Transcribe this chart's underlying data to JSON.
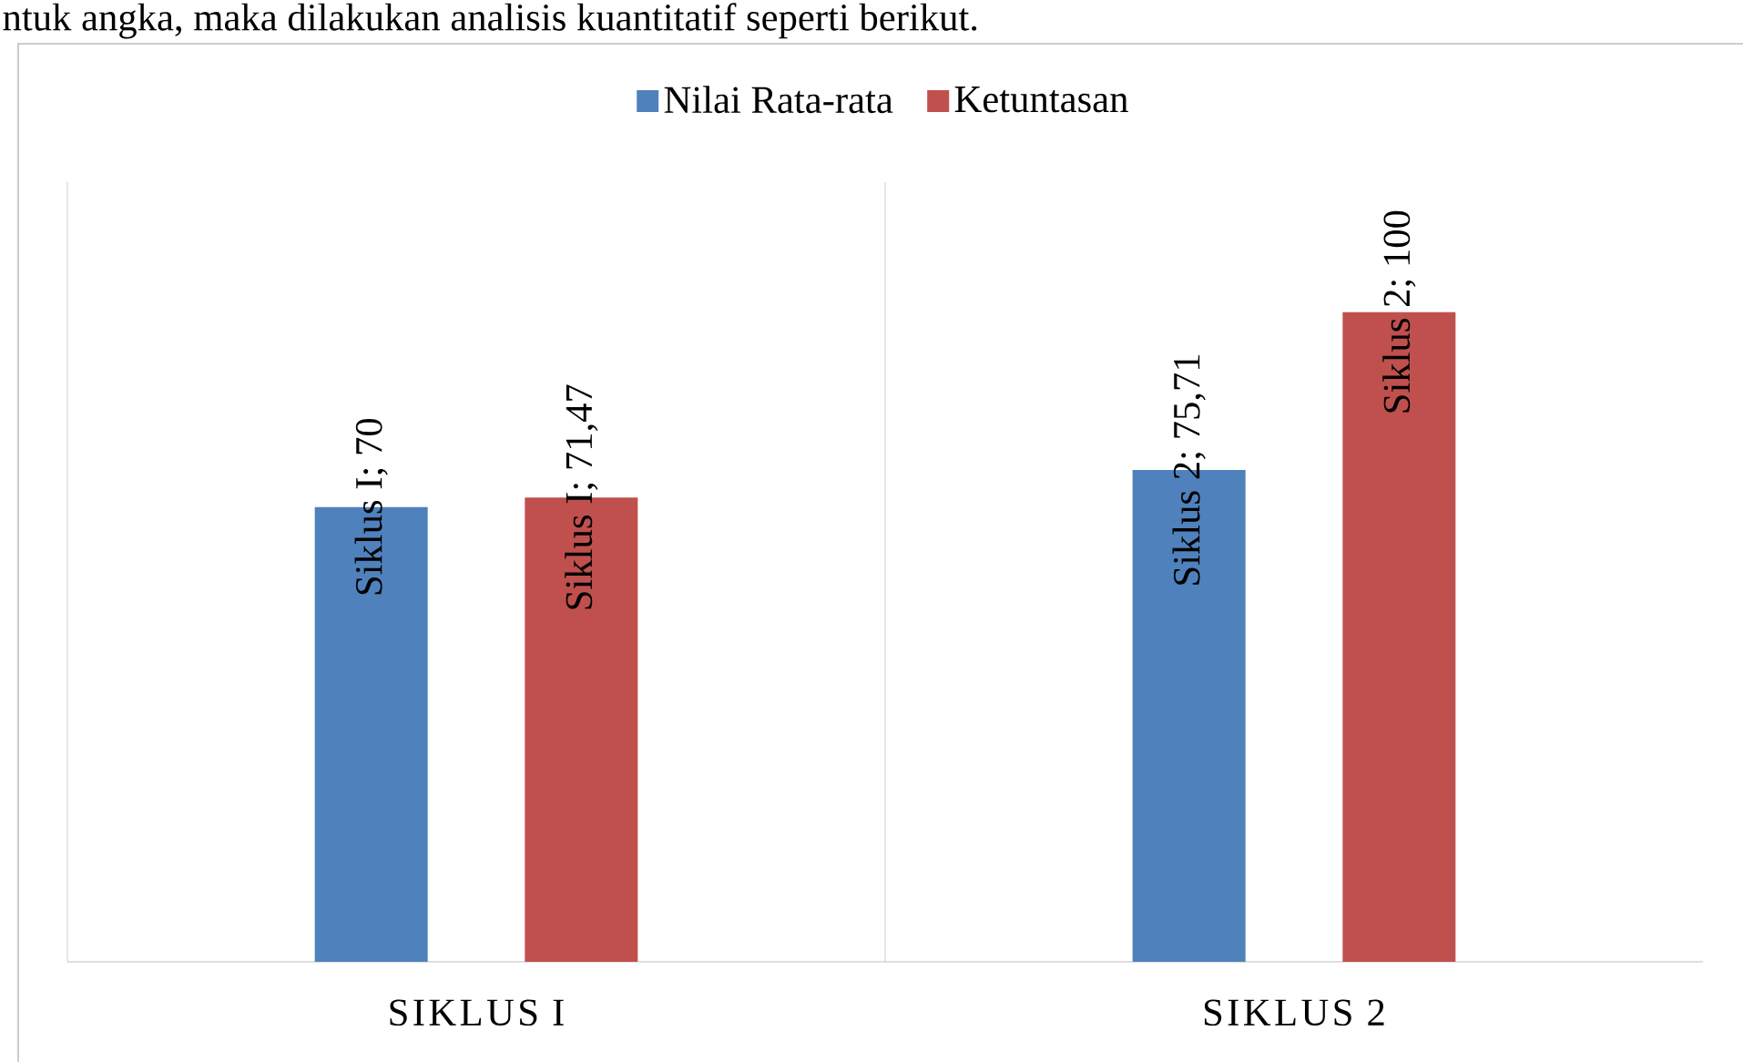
{
  "chart_data": {
    "type": "bar",
    "categories": [
      "SIKLUS I",
      "SIKLUS 2"
    ],
    "series": [
      {
        "name": "Nilai Rata-rata",
        "color": "#4f81bd",
        "values": [
          70,
          75.71
        ],
        "value_labels": [
          "Siklus I; 70",
          "Siklus 2; 75,71"
        ]
      },
      {
        "name": "Ketuntasan",
        "color": "#c0504d",
        "values": [
          71.47,
          100
        ],
        "value_labels": [
          "Siklus I; 71,47",
          "Siklus 2; 100"
        ]
      }
    ],
    "legend": "top",
    "annotations": [
      "ntuk angka, maka dilakukan analisis kuantitatif seperti berikut."
    ]
  }
}
